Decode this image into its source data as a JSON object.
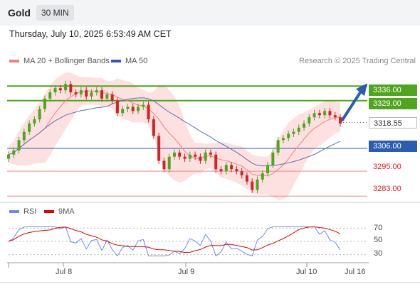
{
  "header": {
    "symbol": "Gold",
    "timeframe": "30 MIN"
  },
  "timestamp": "Thursday, July 10, 2025 6:53:49 AM CET",
  "legend": {
    "ma20": {
      "label": "MA 20 + Bollinger Bands",
      "color": "#f08080"
    },
    "ma50": {
      "label": "MA 50",
      "color": "#2a5db0"
    }
  },
  "credit": "Research © 2025 Trading Central",
  "rsi_legend": {
    "rsi": {
      "label": "RSI",
      "color": "#6a8fe0"
    },
    "ma9": {
      "label": "9MA",
      "color": "#e00000"
    }
  },
  "levels": {
    "r2": "3336.00",
    "r1": "3329.00",
    "last": "3318.55",
    "s1": "3306.00",
    "s2": "3295.00",
    "s3": "3283.00"
  },
  "rsi_ticks": [
    "70",
    "50",
    "30"
  ],
  "x_labels": [
    "Jul 8",
    "Jul 9",
    "Jul 10",
    "Jul 16"
  ],
  "colors": {
    "up": "#4fa51d",
    "down": "#d22222",
    "band": "#fde0e0",
    "arrow": "#2a5db0"
  },
  "chart_data": {
    "type": "candlestick",
    "y_scale": {
      "min": 3280,
      "max": 3345
    },
    "levels": [
      {
        "value": 3336.0,
        "color": "green"
      },
      {
        "value": 3329.0,
        "color": "green"
      },
      {
        "value": 3318.55,
        "color": "gray",
        "last_price": true
      },
      {
        "value": 3306.0,
        "color": "blue"
      },
      {
        "value": 3295.0,
        "color": "red"
      },
      {
        "value": 3283.0,
        "color": "red"
      }
    ],
    "close_path": [
      3303,
      3305,
      3310,
      3314,
      3318,
      3320,
      3325,
      3330,
      3333,
      3335,
      3334,
      3337,
      3333,
      3332,
      3334,
      3331,
      3333,
      3334,
      3330,
      3332,
      3329,
      3323,
      3325,
      3326,
      3324,
      3326,
      3327,
      3320,
      3312,
      3300,
      3296,
      3302,
      3304,
      3302,
      3301,
      3303,
      3302,
      3300,
      3304,
      3303,
      3296,
      3295,
      3298,
      3296,
      3295,
      3293,
      3290,
      3286,
      3291,
      3294,
      3298,
      3304,
      3310,
      3311,
      3313,
      3314,
      3316,
      3318,
      3321,
      3323,
      3322,
      3324,
      3322,
      3321,
      3318
    ],
    "projection": {
      "from": 3318.55,
      "to": 3336
    },
    "rsi_scale": {
      "ticks": [
        70,
        50,
        30
      ]
    }
  }
}
